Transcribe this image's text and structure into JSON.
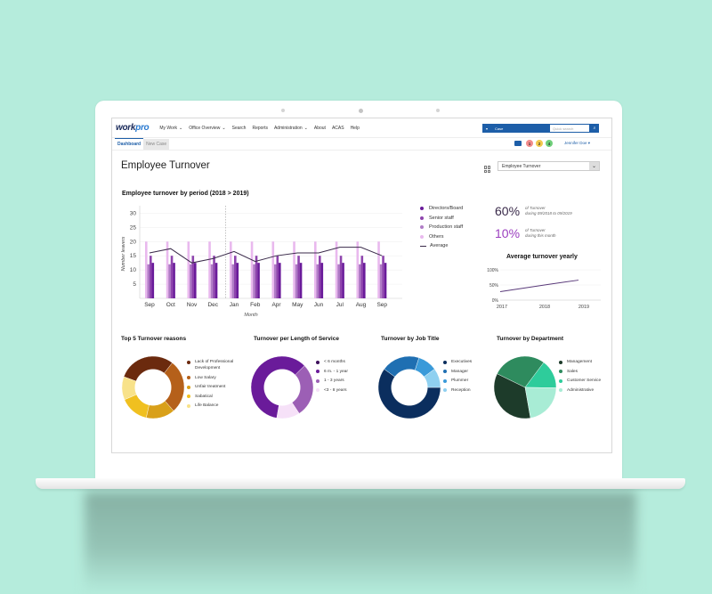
{
  "app": {
    "logo_main": "work",
    "logo_accent": "pro",
    "nav": [
      {
        "label": "My Work",
        "dropdown": true
      },
      {
        "label": "Office Overview",
        "dropdown": true
      },
      {
        "label": "Search",
        "dropdown": false
      },
      {
        "label": "Reports",
        "dropdown": false
      },
      {
        "label": "Administration",
        "dropdown": true
      },
      {
        "label": "About",
        "dropdown": false
      },
      {
        "label": "ACAS",
        "dropdown": false
      },
      {
        "label": "Help",
        "dropdown": false
      }
    ],
    "search": {
      "type_selected": "Case",
      "placeholder": "Quick search",
      "button_icon": "search-icon"
    },
    "tabs": [
      {
        "label": "Dashboard",
        "active": true
      },
      {
        "label": "New Case",
        "active": false
      }
    ],
    "badges": [
      {
        "value": "1",
        "color": "#f28b8b"
      },
      {
        "value": "2",
        "color": "#f2c94c"
      },
      {
        "value": "4",
        "color": "#6fcf7a"
      }
    ],
    "user_name": "Jennifer Doe"
  },
  "page": {
    "title": "Employee Turnover",
    "view_selector": "Employee Turnover"
  },
  "main_chart": {
    "title": "Employee turnover by period (2018 > 2019)",
    "legend": [
      {
        "label": "Directors/Board",
        "color": "#6a1b9a"
      },
      {
        "label": "Senior staff",
        "color": "#8e44ad"
      },
      {
        "label": "Production staff",
        "color": "#b07cc6"
      },
      {
        "label": "Others",
        "color": "#e9b9ee"
      },
      {
        "label": "Average",
        "color": "#3a2a4a"
      }
    ]
  },
  "kpis": [
    {
      "value": "60%",
      "line1": "of Turnover",
      "line2": "during 09/2018 to 09/2019",
      "color": "#3a2a4a"
    },
    {
      "value": "10%",
      "line1": "of Turnover",
      "line2": "during this month",
      "color": "#9b3fbf"
    }
  ],
  "yearly_chart": {
    "title": "Average turnover yearly"
  },
  "donuts": [
    {
      "title": "Top 5 Turnover reasons",
      "items": [
        {
          "label": "Lack of Professional Development",
          "color": "#6b2a0e",
          "value": 30
        },
        {
          "label": "Low Salary",
          "color": "#b5601a",
          "value": 28
        },
        {
          "label": "Unfair treatment",
          "color": "#d9a01a",
          "value": 15
        },
        {
          "label": "Sabatical",
          "color": "#f0c020",
          "value": 15
        },
        {
          "label": "Life Balance",
          "color": "#f8e28a",
          "value": 12
        }
      ]
    },
    {
      "title": "Turnover per Length of Service",
      "items": [
        {
          "label": "< 6 months",
          "color": "#3d0f5c",
          "value": 0
        },
        {
          "label": "6 m. - 1 year",
          "color": "#6a1b9a",
          "value": 60
        },
        {
          "label": "1 - 3 years",
          "color": "#9c5fb5",
          "value": 28
        },
        {
          "label": "<3 - 8 years",
          "color": "#f6e1f8",
          "value": 12
        }
      ]
    },
    {
      "title": "Turnover by Job Title",
      "items": [
        {
          "label": "Executives",
          "color": "#0b2e5e",
          "value": 60
        },
        {
          "label": "Manager",
          "color": "#1f6fb2",
          "value": 20
        },
        {
          "label": "Plummer",
          "color": "#3a9ad9",
          "value": 10
        },
        {
          "label": "Reception",
          "color": "#8fd0f0",
          "value": 10
        }
      ]
    },
    {
      "title": "Turnover by Department",
      "items": [
        {
          "label": "Management",
          "color": "#1d3b2a",
          "value": 35
        },
        {
          "label": "Sales",
          "color": "#2e8b5e",
          "value": 28
        },
        {
          "label": "Customer Service",
          "color": "#2ecc9b",
          "value": 15
        },
        {
          "label": "Administrative",
          "color": "#a8ecd5",
          "value": 22
        }
      ]
    }
  ],
  "chart_data": [
    {
      "type": "bar",
      "title": "Employee turnover by period (2018 > 2019)",
      "xlabel": "Month",
      "ylabel": "Number leavers",
      "ylim": [
        0,
        32
      ],
      "yticks": [
        5,
        10,
        15,
        20,
        25,
        30
      ],
      "categories": [
        "Sep",
        "Oct",
        "Nov",
        "Dec",
        "Jan",
        "Feb",
        "Apr",
        "May",
        "Jun",
        "Jul",
        "Aug",
        "Sep"
      ],
      "series": [
        {
          "name": "Others",
          "values": [
            20,
            20,
            20,
            20,
            20,
            20,
            20,
            20,
            20,
            20,
            20,
            20
          ]
        },
        {
          "name": "Production staff",
          "values": [
            12,
            12,
            12,
            12,
            12,
            12,
            12,
            12,
            12,
            12,
            12,
            12
          ]
        },
        {
          "name": "Senior staff",
          "values": [
            15,
            15,
            15,
            15,
            15,
            15,
            15,
            15,
            15,
            15,
            15,
            15
          ]
        },
        {
          "name": "Directors/Board",
          "values": [
            12.5,
            12.5,
            12.5,
            12.5,
            12.5,
            12.5,
            12.5,
            12.5,
            12.5,
            12.5,
            12.5,
            12.5
          ]
        },
        {
          "name": "Average",
          "type": "line",
          "values": [
            16,
            17.5,
            12.5,
            14,
            16.5,
            13,
            15,
            16,
            16,
            18,
            18,
            15
          ]
        }
      ],
      "annotations": [
        "dashed vertical line between Dec and Jan"
      ],
      "grid": true,
      "legend_position": "right"
    },
    {
      "type": "line",
      "title": "Average turnover yearly",
      "categories": [
        "2017",
        "2018",
        "2019"
      ],
      "values": [
        28,
        52,
        66
      ],
      "yticks": [
        "0%",
        "50%",
        "100%"
      ],
      "ylim": [
        0,
        100
      ]
    },
    {
      "type": "pie",
      "title": "Top 5 Turnover reasons",
      "categories": [
        "Lack of Professional Development",
        "Low Salary",
        "Unfair treatment",
        "Sabatical",
        "Life Balance"
      ],
      "values": [
        30,
        28,
        15,
        15,
        12
      ]
    },
    {
      "type": "pie",
      "title": "Turnover per Length of Service",
      "categories": [
        "< 6 months",
        "6 m. - 1 year",
        "1 - 3 years",
        "<3 - 8 years"
      ],
      "values": [
        0,
        60,
        28,
        12
      ]
    },
    {
      "type": "pie",
      "title": "Turnover by Job Title",
      "categories": [
        "Executives",
        "Manager",
        "Plummer",
        "Reception"
      ],
      "values": [
        60,
        20,
        10,
        10
      ]
    },
    {
      "type": "pie",
      "title": "Turnover by Department",
      "categories": [
        "Management",
        "Sales",
        "Customer Service",
        "Administrative"
      ],
      "values": [
        35,
        28,
        15,
        22
      ]
    }
  ]
}
